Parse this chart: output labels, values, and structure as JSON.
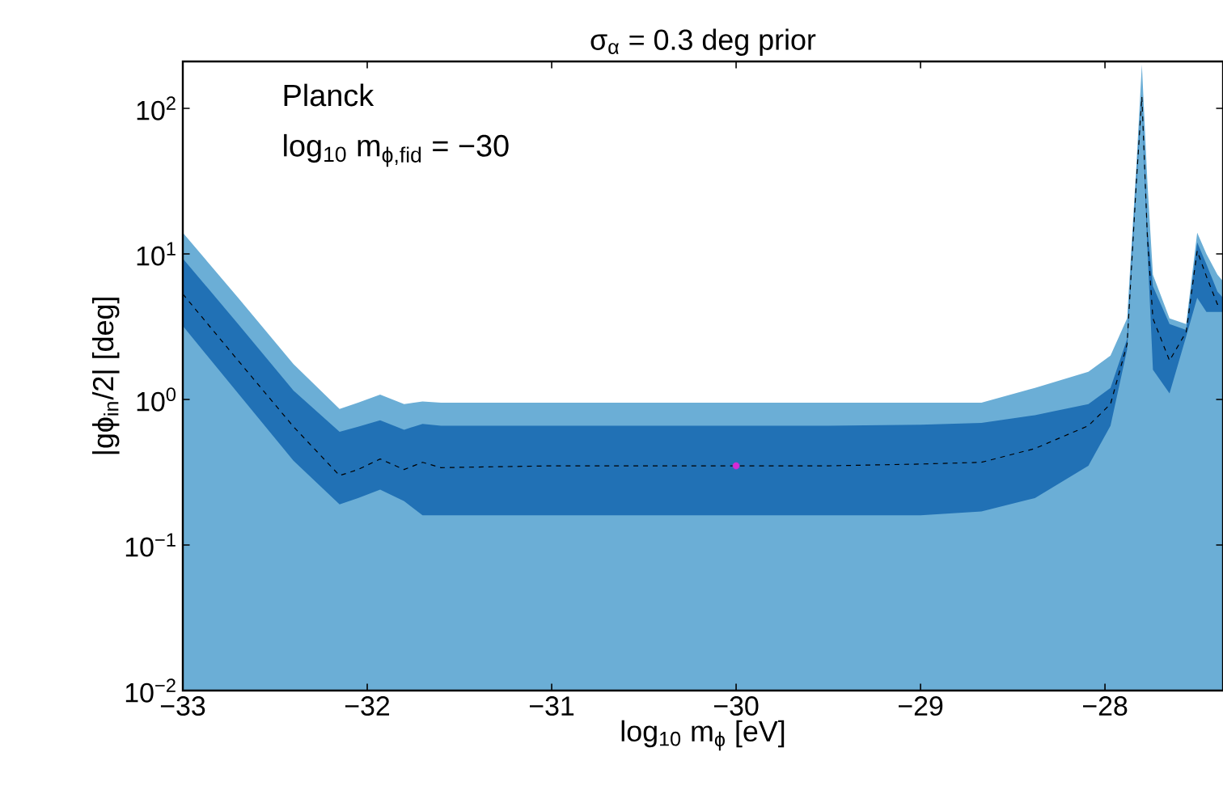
{
  "chart_data": {
    "type": "area",
    "title": "σ$_{α}$ = 0.3 deg prior",
    "xlabel": "log$_{10}$ m$_{ϕ}$ [eV]",
    "ylabel": "|gϕ$_{in}$/2| [deg]",
    "annotations": [
      "Planck",
      "log$_{10}$ m$_{ϕ,fid}$ = −30"
    ],
    "log": "y",
    "xlim": [
      -33,
      -27.36
    ],
    "ylim": [
      0.01,
      210
    ],
    "xticks": [
      {
        "value": -33,
        "label": "−33"
      },
      {
        "value": -32,
        "label": "−32"
      },
      {
        "value": -31,
        "label": "−31"
      },
      {
        "value": -30,
        "label": "−30"
      },
      {
        "value": -29,
        "label": "−29"
      },
      {
        "value": -28,
        "label": "−28"
      }
    ],
    "yticks": [
      {
        "value": 0.01,
        "label": "10$^{−2}$"
      },
      {
        "value": 0.1,
        "label": "10$^{−1}$"
      },
      {
        "value": 1,
        "label": "10$^{0}$"
      },
      {
        "value": 10,
        "label": "10$^{1}$"
      },
      {
        "value": 100,
        "label": "10$^{2}$"
      }
    ],
    "x": [
      -33,
      -32.7,
      -32.4,
      -32.15,
      -32.05,
      -31.93,
      -31.8,
      -31.7,
      -31.6,
      -31,
      -30,
      -29.5,
      -29,
      -28.67,
      -28.38,
      -28.09,
      -27.97,
      -27.88,
      -27.83,
      -27.8,
      -27.77,
      -27.74,
      -27.65,
      -27.56,
      -27.5,
      -27.45,
      -27.39,
      -27.36
    ],
    "series": [
      {
        "color": "#6baed6",
        "values": [
          14,
          5.0,
          1.75,
          0.86,
          0.95,
          1.08,
          0.93,
          0.97,
          0.95,
          0.95,
          0.95,
          0.95,
          0.95,
          0.95,
          1.2,
          1.55,
          2.0,
          3.6,
          40,
          200,
          31,
          7.2,
          3.6,
          3.3,
          14,
          10,
          7.2,
          6.5
        ]
      },
      {
        "type": "line",
        "color": "#000000",
        "line_style": "dashed",
        "values": [
          5.3,
          1.85,
          0.65,
          0.3,
          0.33,
          0.39,
          0.33,
          0.37,
          0.34,
          0.35,
          0.35,
          0.35,
          0.36,
          0.37,
          0.46,
          0.66,
          0.93,
          2.4,
          31,
          120,
          13,
          3.6,
          1.85,
          2.9,
          10.5,
          7,
          4.5,
          4.5
        ],
        "upper": [
          9.3,
          3.3,
          1.15,
          0.6,
          0.65,
          0.72,
          0.62,
          0.68,
          0.66,
          0.66,
          0.66,
          0.66,
          0.67,
          0.69,
          0.78,
          0.93,
          1.2,
          2.6,
          33,
          125,
          15,
          6,
          3.3,
          3,
          12,
          8.5,
          5.5,
          5
        ],
        "lower": [
          3.2,
          1.1,
          0.38,
          0.19,
          0.21,
          0.24,
          0.2,
          0.16,
          0.16,
          0.16,
          0.16,
          0.16,
          0.16,
          0.17,
          0.21,
          0.35,
          0.66,
          2.2,
          29,
          110,
          11,
          1.6,
          1.1,
          2.7,
          5,
          4,
          4,
          4
        ]
      },
      {
        "type": "scatter",
        "color": "#d62ad6",
        "marker": "circle",
        "x": [
          -30
        ],
        "values": [
          0.35
        ]
      }
    ]
  }
}
